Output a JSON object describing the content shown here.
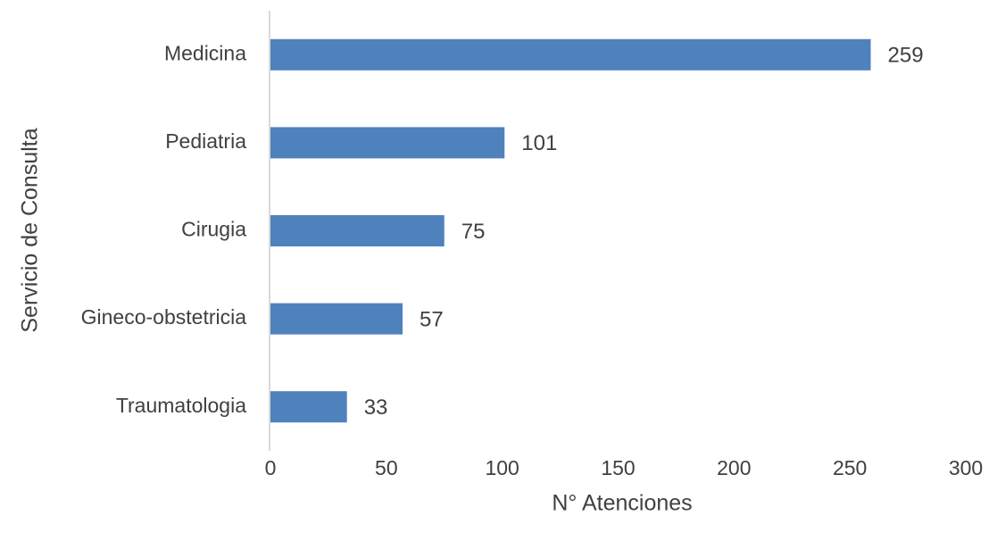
{
  "chart_data": {
    "type": "bar",
    "orientation": "horizontal",
    "categories": [
      "Medicina",
      "Pediatria",
      "Cirugia",
      "Gineco-obstetricia",
      "Traumatologia"
    ],
    "values": [
      259,
      101,
      75,
      57,
      33
    ],
    "data_labels": [
      "259",
      "101",
      "75",
      "57",
      "33"
    ],
    "xlabel": "N° Atenciones",
    "ylabel": "Servicio de Consulta",
    "xlim": [
      0,
      300
    ],
    "xticks": [
      0,
      50,
      100,
      150,
      200,
      250,
      300
    ],
    "xtick_labels": [
      "0",
      "50",
      "100",
      "150",
      "200",
      "250",
      "300"
    ],
    "grid": false,
    "legend": "none",
    "bar_color": "#4F81BD"
  }
}
